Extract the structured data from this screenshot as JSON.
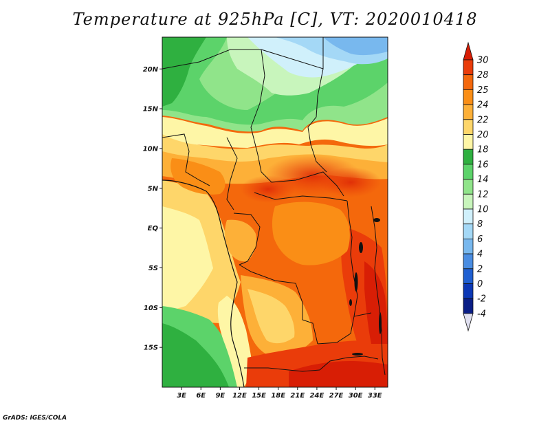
{
  "title": "Temperature at 925hPa [C], VT: 2020010418",
  "credit": "GrADS: IGES/COLA",
  "map": {
    "variable": "Temperature",
    "level": "925hPa",
    "units": "C",
    "valid_time": "2020010418",
    "lon_range": [
      0,
      35
    ],
    "lat_range": [
      -20,
      24
    ],
    "lon_ticks": [
      "3E",
      "6E",
      "9E",
      "12E",
      "15E",
      "18E",
      "21E",
      "24E",
      "27E",
      "30E",
      "33E"
    ],
    "lat_ticks": [
      "20N",
      "15N",
      "10N",
      "5N",
      "EQ",
      "5S",
      "10S",
      "15S"
    ]
  },
  "colorbar": {
    "labels": [
      "30",
      "28",
      "25",
      "24",
      "22",
      "20",
      "18",
      "16",
      "14",
      "12",
      "10",
      "8",
      "6",
      "4",
      "2",
      "0",
      "-2",
      "-4"
    ],
    "colors": [
      "#d81e05",
      "#ea3c0a",
      "#f4680c",
      "#fa8e16",
      "#fdb038",
      "#fed66a",
      "#fef6a6",
      "#2fb040",
      "#5cd36a",
      "#90e48a",
      "#c8f5bc",
      "#d0f0fb",
      "#a4d8f6",
      "#78b8ee",
      "#4a8de2",
      "#2060d2",
      "#0c38b6",
      "#0a1e86",
      "#050a4a"
    ]
  }
}
